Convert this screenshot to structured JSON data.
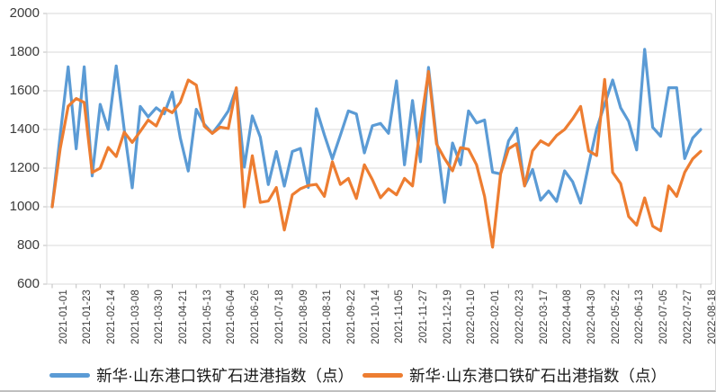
{
  "chart_data": {
    "type": "line",
    "title": "",
    "xlabel": "",
    "ylabel": "",
    "ylim": [
      600,
      2000
    ],
    "yticks": [
      600,
      800,
      1000,
      1200,
      1400,
      1600,
      1800,
      2000
    ],
    "grid": true,
    "legend_position": "bottom",
    "points_per_label": 3,
    "categories": [
      "2021-01-01",
      "2021-01-23",
      "2021-02-14",
      "2021-03-08",
      "2021-03-30",
      "2021-04-21",
      "2021-05-13",
      "2021-06-04",
      "2021-06-26",
      "2021-07-18",
      "2021-08-09",
      "2021-08-31",
      "2021-09-22",
      "2021-10-14",
      "2021-11-05",
      "2021-11-27",
      "2021-12-19",
      "2022-01-10",
      "2022-02-01",
      "2022-02-23",
      "2022-03-17",
      "2022-04-08",
      "2022-04-30",
      "2022-05-22",
      "2022-06-13",
      "2022-07-05",
      "2022-07-27",
      "2022-08-18"
    ],
    "series": [
      {
        "name": "新华·山东港口铁矿石进港指数（点）",
        "color": "#5B9BD5",
        "values": [
          1000,
          1370,
          1724,
          1300,
          1724,
          1160,
          1530,
          1400,
          1729,
          1400,
          1098,
          1519,
          1465,
          1512,
          1481,
          1593,
          1357,
          1185,
          1504,
          1427,
          1380,
          1434,
          1496,
          1612,
          1205,
          1470,
          1360,
          1115,
          1286,
          1107,
          1286,
          1302,
          1100,
          1507,
          1372,
          1248,
          1370,
          1496,
          1480,
          1279,
          1419,
          1431,
          1380,
          1651,
          1217,
          1550,
          1233,
          1721,
          1350,
          1023,
          1330,
          1217,
          1496,
          1434,
          1449,
          1179,
          1170,
          1341,
          1407,
          1108,
          1193,
          1034,
          1082,
          1028,
          1186,
          1130,
          1019,
          1217,
          1403,
          1530,
          1656,
          1512,
          1442,
          1294,
          1815,
          1411,
          1365,
          1616,
          1616,
          1250,
          1356,
          1400
        ]
      },
      {
        "name": "新华·山东港口铁矿石出港指数（点）",
        "color": "#ED7D31",
        "values": [
          1000,
          1300,
          1520,
          1560,
          1540,
          1177,
          1200,
          1307,
          1260,
          1386,
          1333,
          1390,
          1449,
          1418,
          1510,
          1487,
          1541,
          1656,
          1630,
          1417,
          1380,
          1412,
          1405,
          1616,
          1000,
          1264,
          1023,
          1030,
          1100,
          880,
          1062,
          1093,
          1110,
          1116,
          1054,
          1233,
          1116,
          1147,
          1043,
          1217,
          1140,
          1047,
          1093,
          1062,
          1147,
          1108,
          1419,
          1700,
          1325,
          1250,
          1186,
          1306,
          1297,
          1217,
          1054,
          791,
          1170,
          1300,
          1326,
          1108,
          1290,
          1341,
          1318,
          1369,
          1400,
          1455,
          1519,
          1290,
          1265,
          1659,
          1178,
          1120,
          950,
          905,
          1046,
          900,
          876,
          1108,
          1054,
          1178,
          1248,
          1287
        ]
      }
    ]
  }
}
